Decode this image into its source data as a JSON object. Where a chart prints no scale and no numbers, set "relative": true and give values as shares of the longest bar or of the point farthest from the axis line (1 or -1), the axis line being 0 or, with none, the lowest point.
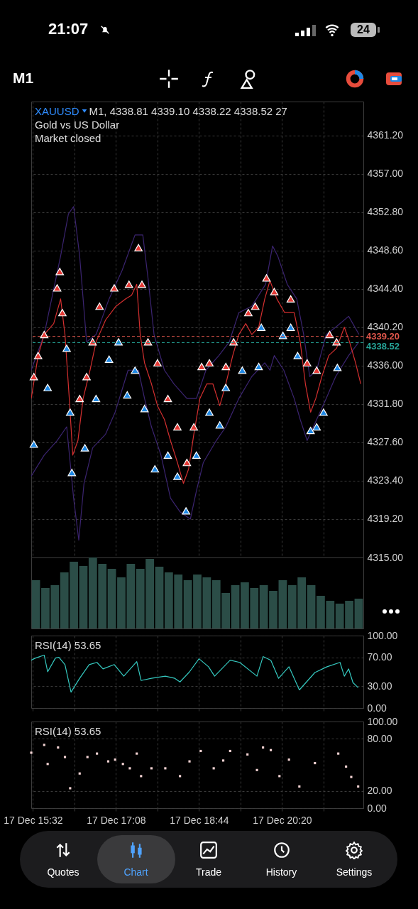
{
  "chart_data": [
    {
      "type": "other",
      "annotations": [
        "21:07",
        "M1",
        "24"
      ]
    },
    {
      "type": "line",
      "title": "XAUUSD",
      "subtitle": "M1, 4338.81 4339.10 4338.22 4338.52 27",
      "annotations": [
        "Gold vs US Dollar",
        "Market closed"
      ],
      "xlim": [
        "--12-17T15:30",
        "--12-17T21:54"
      ],
      "xticks": [
        {
          "value": "--12-17T15:32",
          "label": "17 Dec 15:32"
        },
        {
          "value": "--12-17T16:20",
          "label": null
        },
        {
          "value": "--12-17T17:08",
          "label": "17 Dec 17:08"
        },
        {
          "value": "--12-17T17:56",
          "label": null
        },
        {
          "value": "--12-17T18:44",
          "label": "17 Dec 18:44"
        },
        {
          "value": "--12-17T19:32",
          "label": null
        },
        {
          "value": "--12-17T20:20",
          "label": "17 Dec 20:20"
        },
        {
          "value": "--12-17T21:08",
          "label": null
        }
      ],
      "ylim": [
        4315,
        4364.9
      ],
      "yticks": [
        {
          "value": 4315,
          "label": "4315.00"
        },
        {
          "value": 4319.2,
          "label": "4319.20"
        },
        {
          "value": 4323.4,
          "label": "4323.40"
        },
        {
          "value": 4327.6,
          "label": "4327.60"
        },
        {
          "value": 4331.8,
          "label": "4331.80"
        },
        {
          "value": 4336,
          "label": "4336.00"
        },
        {
          "value": 4340.2,
          "label": "4340.20"
        },
        {
          "value": 4344.4,
          "label": "4344.40"
        },
        {
          "value": 4348.6,
          "label": "4348.60"
        },
        {
          "value": 4352.8,
          "label": "4352.80"
        },
        {
          "value": 4357,
          "label": "4357.00"
        },
        {
          "value": 4361.2,
          "label": "4361.20"
        }
      ],
      "grid": true,
      "tick_labels": "y",
      "ref_lines": [
        {
          "axis": "y",
          "value": 4339.2,
          "label": "4339.20",
          "color": "#e2574c",
          "line_style": "dashed"
        },
        {
          "axis": "y",
          "value": 4338.52,
          "label": "4338.52",
          "color": "#26a69a",
          "line_style": "dashed"
        }
      ],
      "series": [
        {
          "type": "line",
          "color": "#3b2470",
          "x": [
            "--12-17T15:30",
            "--12-17T15:45",
            "--12-17T16:04",
            "--12-17T16:13",
            "--12-17T16:19",
            "--12-17T16:26",
            "--12-17T16:34",
            "--12-17T16:45",
            "--12-17T17:00",
            "--12-17T17:15",
            "--12-17T17:30",
            "--12-17T17:39",
            "--12-17T17:45",
            "--12-17T17:52",
            "--12-17T18:04",
            "--12-17T18:15",
            "--12-17T18:30",
            "--12-17T18:41",
            "--12-17T18:52",
            "--12-17T19:07",
            "--12-17T19:19",
            "--12-17T19:30",
            "--12-17T19:45",
            "--12-17T20:01",
            "--12-17T20:09",
            "--12-17T20:15",
            "--12-17T20:26",
            "--12-17T20:37",
            "--12-17T20:45",
            "--12-17T20:52",
            "--12-17T21:00",
            "--12-17T21:11",
            "--12-17T21:22",
            "--12-17T21:37",
            "--12-17T21:49"
          ],
          "values": [
            4335.5,
            4339.4,
            4348.0,
            4352.6,
            4353.4,
            4348.0,
            4338.6,
            4339.4,
            4343.3,
            4346.4,
            4350.3,
            4350.3,
            4345.6,
            4339.4,
            4335.5,
            4334.0,
            4332.4,
            4332.4,
            4335.5,
            4337.1,
            4338.6,
            4341.8,
            4342.5,
            4344.9,
            4349.1,
            4348.0,
            4344.9,
            4343.3,
            4339.4,
            4334.8,
            4335.5,
            4339.4,
            4340.2,
            4341.4,
            4339.4
          ]
        },
        {
          "type": "line",
          "color": "#3b2470",
          "x": [
            "--12-17T15:30",
            "--12-17T15:45",
            "--12-17T16:00",
            "--12-17T16:11",
            "--12-17T16:19",
            "--12-17T16:25",
            "--12-17T16:31",
            "--12-17T16:41",
            "--12-17T16:56",
            "--12-17T17:07",
            "--12-17T17:22",
            "--12-17T17:34",
            "--12-17T17:41",
            "--12-17T17:49",
            "--12-17T18:00",
            "--12-17T18:11",
            "--12-17T18:22",
            "--12-17T18:34",
            "--12-17T18:41",
            "--12-17T18:49",
            "--12-17T19:04",
            "--12-17T19:15",
            "--12-17T19:30",
            "--12-17T19:45",
            "--12-17T20:00",
            "--12-17T20:06",
            "--12-17T20:11",
            "--12-17T20:22",
            "--12-17T20:34",
            "--12-17T20:41",
            "--12-17T20:49",
            "--12-17T21:00",
            "--12-17T21:11",
            "--12-17T21:22",
            "--12-17T21:37",
            "--12-17T21:49"
          ],
          "values": [
            4323.9,
            4326.2,
            4327.8,
            4329.3,
            4321.5,
            4316.9,
            4323.1,
            4327.0,
            4328.5,
            4330.9,
            4335.5,
            4335.5,
            4332.4,
            4329.3,
            4326.2,
            4321.5,
            4320.0,
            4319.2,
            4322.3,
            4325.4,
            4327.8,
            4329.3,
            4332.4,
            4334.8,
            4336.3,
            4335.5,
            4337.1,
            4335.5,
            4332.4,
            4330.1,
            4327.8,
            4330.1,
            4332.4,
            4334.8,
            4337.1,
            4338.6
          ]
        },
        {
          "type": "line",
          "color": "#d32f2f",
          "x": [
            "--12-17T15:30",
            "--12-17T15:38",
            "--12-17T15:45",
            "--12-17T15:56",
            "--12-17T16:04",
            "--12-17T16:09",
            "--12-17T16:14",
            "--12-17T16:18",
            "--12-17T16:24",
            "--12-17T16:30",
            "--12-17T16:38",
            "--12-17T16:45",
            "--12-17T16:56",
            "--12-17T17:08",
            "--12-17T17:19",
            "--12-17T17:26",
            "--12-17T17:32",
            "--12-17T17:36",
            "--12-17T17:41",
            "--12-17T17:49",
            "--12-17T17:56",
            "--12-17T18:04",
            "--12-17T18:11",
            "--12-17T18:19",
            "--12-17T18:26",
            "--12-17T18:32",
            "--12-17T18:38",
            "--12-17T18:45",
            "--12-17T18:53",
            "--12-17T19:00",
            "--12-17T19:08",
            "--12-17T19:15",
            "--12-17T19:23",
            "--12-17T19:30",
            "--12-17T19:38",
            "--12-17T19:45",
            "--12-17T19:53",
            "--12-17T20:00",
            "--12-17T20:06",
            "--12-17T20:14",
            "--12-17T20:23",
            "--12-17T20:34",
            "--12-17T20:41",
            "--12-17T20:47",
            "--12-17T20:53",
            "--12-17T20:59",
            "--12-17T21:06",
            "--12-17T21:14",
            "--12-17T21:23",
            "--12-17T21:32",
            "--12-17T21:38",
            "--12-17T21:45",
            "--12-17T21:51"
          ],
          "values": [
            4332.4,
            4337.1,
            4339.4,
            4340.6,
            4343.3,
            4339.4,
            4332.4,
            4326.2,
            4327.8,
            4332.4,
            4335.5,
            4338.6,
            4341.0,
            4342.5,
            4343.3,
            4343.7,
            4344.9,
            4339.4,
            4336.3,
            4334.0,
            4331.6,
            4330.1,
            4327.8,
            4325.4,
            4323.1,
            4324.7,
            4328.5,
            4332.4,
            4334.0,
            4334.0,
            4331.6,
            4334.0,
            4337.1,
            4339.4,
            4340.6,
            4339.4,
            4340.2,
            4343.3,
            4345.3,
            4343.3,
            4341.8,
            4341.8,
            4338.6,
            4334.0,
            4330.9,
            4332.4,
            4334.8,
            4337.1,
            4337.9,
            4340.2,
            4338.6,
            4336.3,
            4334.0
          ]
        },
        {
          "type": "scatter",
          "marker": "triangle",
          "color": "#e53935",
          "x": [
            "--12-17T16:03",
            "--12-17T16:00",
            "--12-17T16:06",
            "--12-17T15:45",
            "--12-17T15:38",
            "--12-17T15:33",
            "--12-17T16:26",
            "--12-17T16:34",
            "--12-17T16:41",
            "--12-17T16:49",
            "--12-17T17:06",
            "--12-17T17:23",
            "--12-17T17:34",
            "--12-17T17:38",
            "--12-17T17:45",
            "--12-17T17:56",
            "--12-17T18:08",
            "--12-17T18:19",
            "--12-17T18:30",
            "--12-17T18:38",
            "--12-17T18:47",
            "--12-17T18:56",
            "--12-17T19:15",
            "--12-17T19:24",
            "--12-17T19:41",
            "--12-17T19:49",
            "--12-17T20:02",
            "--12-17T20:11",
            "--12-17T20:30",
            "--12-17T20:49",
            "--12-17T21:00",
            "--12-17T21:15",
            "--12-17T21:23"
          ],
          "values": [
            4346.3,
            4344.5,
            4341.8,
            4339.4,
            4337.1,
            4334.8,
            4332.4,
            4334.8,
            4338.6,
            4342.5,
            4344.5,
            4344.9,
            4348.9,
            4344.9,
            4338.6,
            4336.3,
            4332.4,
            4329.3,
            4325.4,
            4329.3,
            4335.9,
            4336.3,
            4335.9,
            4338.6,
            4341.8,
            4342.5,
            4345.6,
            4344.1,
            4343.3,
            4336.3,
            4335.5,
            4339.4,
            4338.6
          ]
        },
        {
          "type": "scatter",
          "marker": "triangle",
          "color": "#1e88e5",
          "x": [
            "--12-17T15:33",
            "--12-17T15:49",
            "--12-17T16:11",
            "--12-17T16:15",
            "--12-17T16:17",
            "--12-17T16:32",
            "--12-17T16:45",
            "--12-17T17:00",
            "--12-17T17:11",
            "--12-17T17:21",
            "--12-17T17:30",
            "--12-17T17:41",
            "--12-17T17:53",
            "--12-17T18:08",
            "--12-17T18:19",
            "--12-17T18:29",
            "--12-17T18:41",
            "--12-17T18:56",
            "--12-17T19:08",
            "--12-17T19:15",
            "--12-17T19:34",
            "--12-17T19:53",
            "--12-17T19:56",
            "--12-17T20:21",
            "--12-17T20:30",
            "--12-17T20:38",
            "--12-17T20:53",
            "--12-17T21:00",
            "--12-17T21:08",
            "--12-17T21:24"
          ],
          "values": [
            4327.4,
            4333.6,
            4337.9,
            4330.9,
            4324.3,
            4327.0,
            4332.4,
            4336.7,
            4338.6,
            4332.8,
            4335.5,
            4331.3,
            4324.7,
            4326.2,
            4323.9,
            4320.1,
            4326.2,
            4330.9,
            4329.5,
            4333.6,
            4335.5,
            4335.9,
            4340.2,
            4339.3,
            4340.2,
            4337.1,
            4328.9,
            4329.3,
            4330.9,
            4335.8
          ]
        }
      ]
    },
    {
      "type": "bar",
      "relative": true,
      "tick_labels": false,
      "categories": [
        null,
        null,
        null,
        null,
        null,
        null,
        null,
        null,
        null,
        null,
        null,
        null,
        null,
        null,
        null,
        null,
        null,
        null,
        null,
        null,
        null,
        null,
        null,
        null,
        null,
        null,
        null,
        null,
        null,
        null,
        null,
        null,
        null,
        null,
        null
      ],
      "series": [
        {
          "color": "#2b4d47",
          "values": [
            0.68,
            0.57,
            0.61,
            0.79,
            0.94,
            0.88,
            1,
            0.91,
            0.84,
            0.72,
            0.91,
            0.84,
            0.98,
            0.87,
            0.79,
            0.76,
            0.68,
            0.76,
            0.72,
            0.68,
            0.5,
            0.61,
            0.65,
            0.57,
            0.61,
            0.53,
            0.68,
            0.61,
            0.72,
            0.61,
            0.46,
            0.39,
            0.35,
            0.39,
            0.42
          ]
        }
      ]
    },
    {
      "type": "line",
      "title": "RSI(14) 53.65",
      "grid": true,
      "tick_labels": "y",
      "xlim": [
        "--12-17T15:30",
        "--12-17T21:54"
      ],
      "xticks": [
        {
          "value": "--12-17T15:32",
          "label": "17 Dec 15:32"
        },
        {
          "value": "--12-17T16:20",
          "label": null
        },
        {
          "value": "--12-17T17:08",
          "label": "17 Dec 17:08"
        },
        {
          "value": "--12-17T17:56",
          "label": null
        },
        {
          "value": "--12-17T18:44",
          "label": "17 Dec 18:44"
        },
        {
          "value": "--12-17T19:32",
          "label": null
        },
        {
          "value": "--12-17T20:20",
          "label": "17 Dec 20:20"
        },
        {
          "value": "--12-17T21:08",
          "label": null
        }
      ],
      "ylim": [
        0,
        100
      ],
      "yticks": [
        {
          "value": 0,
          "label": "0.00"
        },
        {
          "value": 30,
          "label": "30.00"
        },
        {
          "value": 70,
          "label": "70.00"
        },
        {
          "value": 100,
          "label": "100.00"
        }
      ],
      "x": [
        "--12-17T15:30",
        "--12-17T15:35",
        "--12-17T15:45",
        "--12-17T15:49",
        "--12-17T15:58",
        "--12-17T16:02",
        "--12-17T16:09",
        "--12-17T16:16",
        "--12-17T16:26",
        "--12-17T16:37",
        "--12-17T16:46",
        "--12-17T16:53",
        "--12-17T17:06",
        "--12-17T17:17",
        "--12-17T17:32",
        "--12-17T17:37",
        "--12-17T17:49",
        "--12-17T18:05",
        "--12-17T18:16",
        "--12-17T18:22",
        "--12-17T18:33",
        "--12-17T18:44",
        "--12-17T18:55",
        "--12-17T19:02",
        "--12-17T19:20",
        "--12-17T19:31",
        "--12-17T19:51",
        "--12-17T19:58",
        "--12-17T20:07",
        "--12-17T20:16",
        "--12-17T20:28",
        "--12-17T20:40",
        "--12-17T20:58",
        "--12-17T21:12",
        "--12-17T21:27",
        "--12-17T21:32",
        "--12-17T21:37",
        "--12-17T21:42",
        "--12-17T21:48"
      ],
      "series": [
        {
          "color": "#35c9c0",
          "values": [
            66,
            69,
            73,
            50,
            69,
            70,
            60,
            22,
            41,
            60,
            63,
            54,
            60,
            44,
            64,
            38,
            41,
            44,
            41,
            36,
            50,
            68,
            57,
            44,
            66,
            63,
            44,
            71,
            66,
            41,
            57,
            25,
            49,
            57,
            63,
            44,
            54,
            35,
            28
          ]
        }
      ]
    },
    {
      "type": "scatter",
      "title": "RSI(14) 53.65",
      "grid": true,
      "xlim": [
        "--12-17T15:30",
        "--12-17T21:54"
      ],
      "xticks": [
        {
          "value": "--12-17T15:32",
          "label": "17 Dec 15:32"
        },
        {
          "value": "--12-17T16:20",
          "label": null
        },
        {
          "value": "--12-17T17:08",
          "label": "17 Dec 17:08"
        },
        {
          "value": "--12-17T17:56",
          "label": null
        },
        {
          "value": "--12-17T18:44",
          "label": "17 Dec 18:44"
        },
        {
          "value": "--12-17T19:32",
          "label": null
        },
        {
          "value": "--12-17T20:20",
          "label": "17 Dec 20:20"
        },
        {
          "value": "--12-17T21:08",
          "label": null
        }
      ],
      "ylim": [
        0,
        100
      ],
      "yticks": [
        {
          "value": 0,
          "label": "0.00"
        },
        {
          "value": 20,
          "label": "20.00"
        },
        {
          "value": 80,
          "label": "80.00"
        },
        {
          "value": 100,
          "label": "100.00"
        }
      ],
      "x": [
        "--12-17T15:30",
        "--12-17T15:45",
        "--12-17T15:49",
        "--12-17T16:01",
        "--12-17T16:09",
        "--12-17T16:15",
        "--12-17T16:26",
        "--12-17T16:35",
        "--12-17T16:46",
        "--12-17T16:59",
        "--12-17T17:07",
        "--12-17T17:16",
        "--12-17T17:24",
        "--12-17T17:32",
        "--12-17T17:37",
        "--12-17T17:49",
        "--12-17T18:05",
        "--12-17T18:22",
        "--12-17T18:33",
        "--12-17T18:46",
        "--12-17T19:01",
        "--12-17T19:12",
        "--12-17T19:20",
        "--12-17T19:40",
        "--12-17T19:51",
        "--12-17T19:58",
        "--12-17T20:07",
        "--12-17T20:17",
        "--12-17T20:28",
        "--12-17T20:40",
        "--12-17T20:58",
        "--12-17T21:25",
        "--12-17T21:34",
        "--12-17T21:40",
        "--12-17T21:48"
      ],
      "series": [
        {
          "color": "#f3d3d3",
          "marker": "square",
          "values": [
            64,
            73,
            51,
            70,
            59,
            23,
            40,
            59,
            63,
            54,
            56,
            51,
            46,
            63,
            37,
            46,
            46,
            37,
            54,
            66,
            46,
            55,
            66,
            62,
            44,
            70,
            67,
            37,
            56,
            25,
            52,
            63,
            48,
            36,
            25
          ]
        }
      ]
    },
    {
      "type": "other",
      "annotations": [
        "Quotes",
        "Chart",
        "Trade",
        "History",
        "Settings"
      ]
    }
  ]
}
